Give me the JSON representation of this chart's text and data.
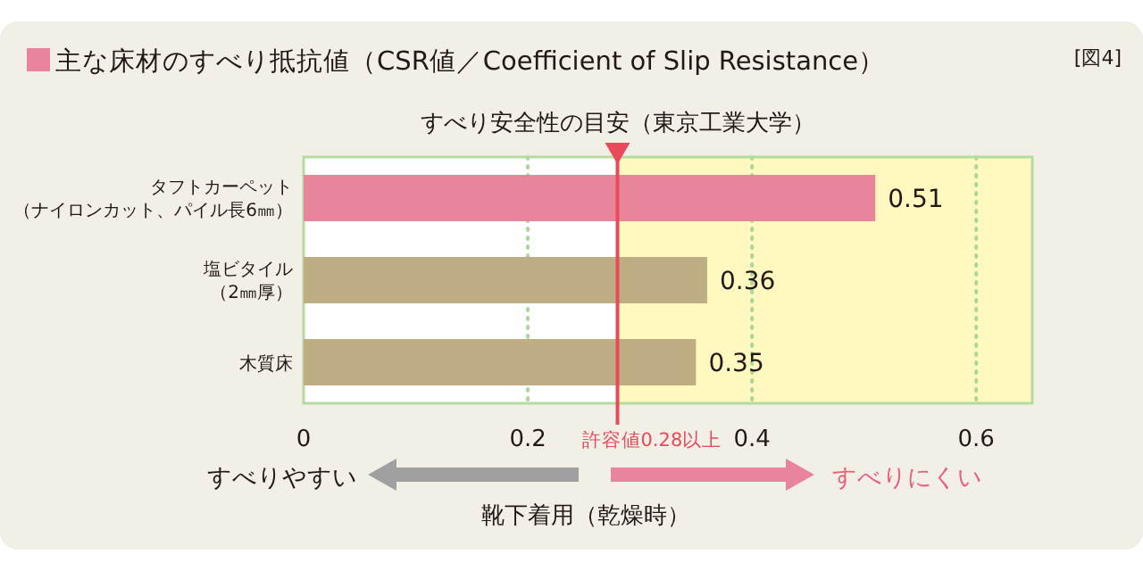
{
  "chart_data": {
    "type": "bar",
    "orientation": "horizontal",
    "title": "主な床材のすべり抵抗値（CSR値／Coefficient of Slip Resistance）",
    "xlabel": "靴下着用（乾燥時）",
    "categories": [
      "タフトカーペット（ナイロンカット、パイル長6㎜）",
      "塩ビタイル（2㎜厚）",
      "木質床"
    ],
    "values": [
      0.51,
      0.36,
      0.35
    ],
    "colors": [
      "#e8859a",
      "#bfae84",
      "#bfae84"
    ],
    "data_labels": true,
    "xlim": [
      0,
      0.65
    ],
    "xticks": [
      0,
      0.2,
      0.4,
      0.6
    ],
    "grid": "x",
    "ref_lines": [
      {
        "axis": "x",
        "value": 0.28,
        "label": "許容値0.28以上",
        "color": "#e84a5a"
      }
    ],
    "bands": [
      {
        "axis": "x",
        "from": 0.28,
        "to": 0.65,
        "color": "#fff9c0"
      }
    ],
    "annotations": [
      "すべり安全性の目安（東京工業大学）",
      "すべりやすい",
      "すべりにくい",
      "[図4]"
    ]
  }
}
